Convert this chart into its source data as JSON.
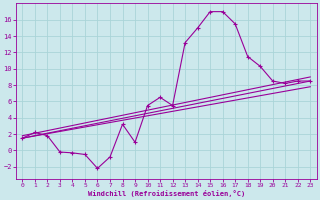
{
  "xlabel": "Windchill (Refroidissement éolien,°C)",
  "background_color": "#cce8ec",
  "grid_color": "#aad4d8",
  "line_color": "#990099",
  "spine_color": "#990099",
  "xlim": [
    -0.5,
    23.5
  ],
  "ylim": [
    -3.5,
    18.0
  ],
  "xticks": [
    0,
    1,
    2,
    3,
    4,
    5,
    6,
    7,
    8,
    9,
    10,
    11,
    12,
    13,
    14,
    15,
    16,
    17,
    18,
    19,
    20,
    21,
    22,
    23
  ],
  "yticks": [
    -2,
    0,
    2,
    4,
    6,
    8,
    10,
    12,
    14,
    16
  ],
  "series_main": [
    [
      0,
      1.5
    ],
    [
      1,
      2.2
    ],
    [
      2,
      1.8
    ],
    [
      3,
      -0.2
    ],
    [
      4,
      -0.3
    ],
    [
      5,
      -0.5
    ],
    [
      6,
      -2.2
    ],
    [
      7,
      -0.8
    ],
    [
      8,
      3.2
    ],
    [
      9,
      1.0
    ],
    [
      10,
      5.5
    ],
    [
      11,
      6.5
    ],
    [
      12,
      5.5
    ],
    [
      13,
      13.2
    ],
    [
      14,
      15.0
    ],
    [
      15,
      17.0
    ],
    [
      16,
      17.0
    ],
    [
      17,
      15.5
    ],
    [
      18,
      11.5
    ],
    [
      19,
      10.3
    ],
    [
      20,
      8.5
    ],
    [
      21,
      8.2
    ],
    [
      22,
      8.5
    ],
    [
      23,
      8.5
    ]
  ],
  "line1": [
    [
      0,
      1.5
    ],
    [
      23,
      8.5
    ]
  ],
  "line2": [
    [
      0,
      1.8
    ],
    [
      23,
      9.0
    ]
  ],
  "line3": [
    [
      0,
      1.5
    ],
    [
      23,
      7.8
    ]
  ]
}
